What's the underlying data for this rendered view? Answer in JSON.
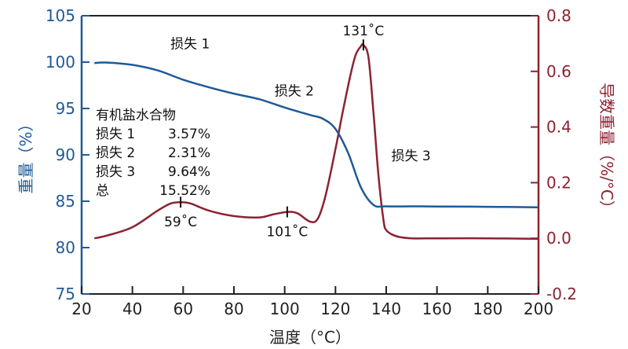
{
  "chart_data": {
    "type": "line",
    "xlabel": "温度（°C）",
    "ylabel_left": "重量（%）",
    "ylabel_right": "导数重量（%/°C）",
    "xlim": [
      20,
      200
    ],
    "ylim_left": [
      75,
      105
    ],
    "ylim_right": [
      -0.2,
      0.8
    ],
    "x_ticks": [
      "20",
      "40",
      "60",
      "80",
      "100",
      "120",
      "140",
      "160",
      "180",
      "200"
    ],
    "y_left_ticks": [
      "75",
      "80",
      "85",
      "90",
      "95",
      "100",
      "105"
    ],
    "y_right_ticks": [
      "-0.2",
      "0.0",
      "0.2",
      "0.4",
      "0.6",
      "0.8"
    ],
    "colors": {
      "weight": "#1f5a96",
      "derivative": "#8b2332",
      "axis_left": "#1f5a96",
      "axis_right": "#8b2332"
    },
    "series": [
      {
        "axis": "left",
        "x": [
          25,
          30,
          40,
          50,
          60,
          70,
          80,
          90,
          100,
          110,
          115,
          120,
          125,
          130,
          135,
          140,
          150,
          160,
          180,
          200
        ],
        "y": [
          99.9,
          99.95,
          99.7,
          99.1,
          98.1,
          97.3,
          96.6,
          96.0,
          95.1,
          94.3,
          93.9,
          92.8,
          90.2,
          86.5,
          84.6,
          84.45,
          84.45,
          84.43,
          84.4,
          84.35
        ]
      },
      {
        "axis": "right",
        "x": [
          25,
          30,
          40,
          50,
          55,
          59,
          63,
          70,
          80,
          90,
          95,
          101,
          105,
          110,
          113,
          116,
          120,
          123,
          126,
          128,
          130,
          131,
          133,
          135,
          137,
          139,
          140,
          142,
          145,
          150,
          160,
          180,
          200
        ],
        "y": [
          0.0,
          0.01,
          0.04,
          0.1,
          0.125,
          0.13,
          0.125,
          0.1,
          0.08,
          0.075,
          0.085,
          0.095,
          0.09,
          0.06,
          0.07,
          0.15,
          0.32,
          0.46,
          0.59,
          0.66,
          0.69,
          0.695,
          0.65,
          0.45,
          0.22,
          0.06,
          0.03,
          0.015,
          0.005,
          0.0,
          0.0,
          0.0,
          -0.002
        ]
      }
    ],
    "peak_labels": [
      {
        "x": 59,
        "y": 0.13,
        "text": "59˚C",
        "pos": "below"
      },
      {
        "x": 101,
        "y": 0.095,
        "text": "101˚C",
        "pos": "below"
      },
      {
        "x": 131,
        "y": 0.695,
        "text": "131˚C",
        "pos": "above"
      }
    ],
    "annotations": [
      {
        "text": "损失 1",
        "x": 55,
        "y": 101.5
      },
      {
        "text": "损失 2",
        "x": 96,
        "y": 96.4
      },
      {
        "text": "损失 3",
        "x": 142,
        "y": 89.4
      }
    ],
    "summary": {
      "title": "有机盐水合物",
      "rows": [
        {
          "label": "损失 1",
          "value": "3.57%"
        },
        {
          "label": "损失 2",
          "value": "2.31%"
        },
        {
          "label": "损失 3",
          "value": "9.64%"
        },
        {
          "label": "总",
          "value": "15.52%"
        }
      ]
    }
  }
}
